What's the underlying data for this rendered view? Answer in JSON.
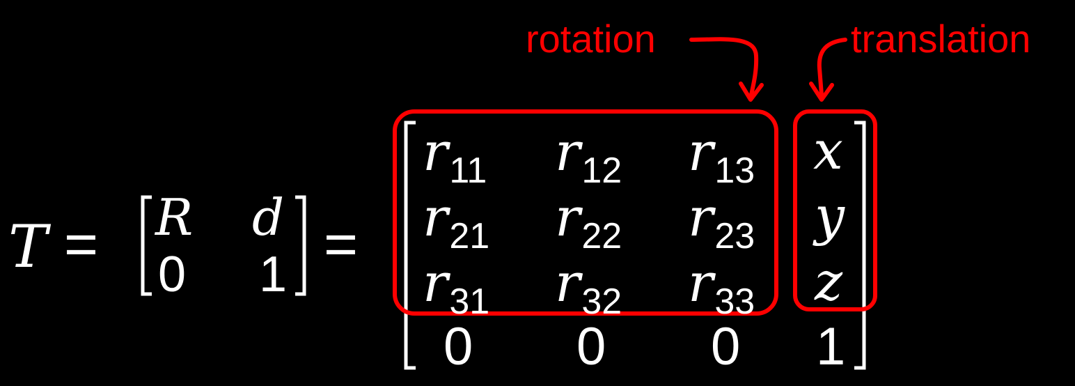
{
  "equation": {
    "lhs": "T",
    "equals_1": "=",
    "equals_2": "=",
    "block_matrix": {
      "R": "R",
      "d": "d",
      "zero": "0",
      "one": "1"
    },
    "rotation_entries": [
      [
        "r",
        "11"
      ],
      [
        "r",
        "12"
      ],
      [
        "r",
        "13"
      ],
      [
        "r",
        "21"
      ],
      [
        "r",
        "22"
      ],
      [
        "r",
        "23"
      ],
      [
        "r",
        "31"
      ],
      [
        "r",
        "32"
      ],
      [
        "r",
        "33"
      ]
    ],
    "translation_entries": [
      "x",
      "y",
      "z"
    ],
    "bottom_row": [
      "0",
      "0",
      "0",
      "1"
    ]
  },
  "annotations": {
    "rotation_label": "rotation",
    "translation_label": "translation",
    "color": "#ff0000"
  }
}
